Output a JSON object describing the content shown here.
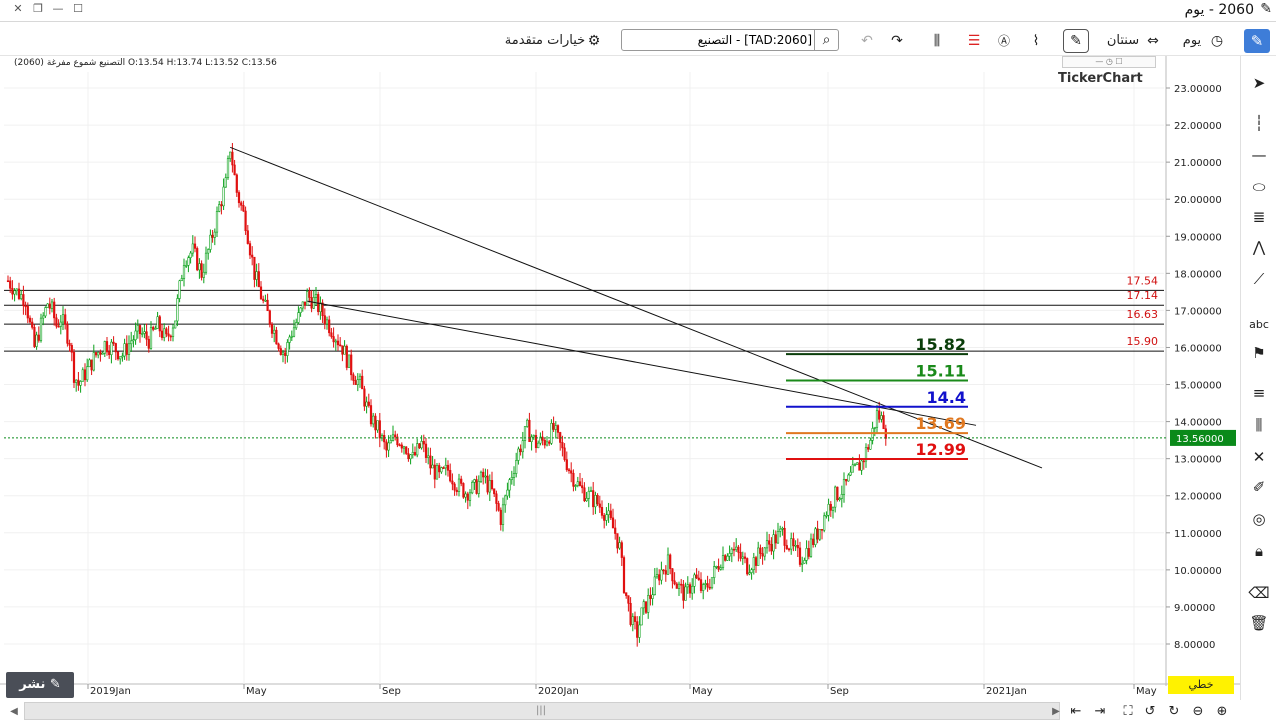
{
  "window": {
    "title": "2060 - يوم",
    "menu_icon": "pencil-icon"
  },
  "toolbar": {
    "advanced_options": "خيارات متقدمة",
    "symbol_search_value": "[TAD:2060] - التصنيع",
    "timeframe_label": "يوم",
    "period_label": "سنتان"
  },
  "chart_header": {
    "symbol_ar": "التصنيع شموع مفرغة",
    "symbol_code": "(2060)",
    "open": "O:13.54",
    "high": "H:13.74",
    "low": "L:13.52",
    "close": "C:13.56"
  },
  "logo": "TickerChart",
  "chart_data": {
    "type": "candlestick",
    "y_axis": {
      "min": 7.5,
      "max": 23.5,
      "ticks": [
        "23.00000",
        "22.00000",
        "21.00000",
        "20.00000",
        "19.00000",
        "18.00000",
        "17.00000",
        "16.00000",
        "15.00000",
        "14.00000",
        "13.00000",
        "12.00000",
        "11.00000",
        "10.00000",
        "9.00000",
        "8.00000"
      ]
    },
    "x_axis_labels": [
      "2019Jan",
      "May",
      "Sep",
      "2020Jan",
      "May",
      "Sep",
      "2021Jan",
      "May"
    ],
    "last_price": "13.56000",
    "resistance_lines": [
      {
        "label": "17.54",
        "value": 17.54
      },
      {
        "label": "17.14",
        "value": 17.14
      },
      {
        "label": "16.63",
        "value": 16.63
      },
      {
        "label": "15.90",
        "value": 15.9
      }
    ],
    "fib_levels": [
      {
        "label": "15.82",
        "value": 15.82,
        "color": "#0a3d0a"
      },
      {
        "label": "15.11",
        "value": 15.11,
        "color": "#1a8a1a"
      },
      {
        "label": "14.4",
        "value": 14.4,
        "color": "#1111cc"
      },
      {
        "label": "13.69",
        "value": 13.69,
        "color": "#e07820"
      },
      {
        "label": "12.99",
        "value": 12.99,
        "color": "#e01010"
      }
    ],
    "price_path": [
      [
        0,
        17.8
      ],
      [
        4,
        17.5
      ],
      [
        8,
        17.3
      ],
      [
        10,
        16.6
      ],
      [
        12,
        16.0
      ],
      [
        15,
        16.6
      ],
      [
        18,
        17.2
      ],
      [
        20,
        17.0
      ],
      [
        22,
        16.6
      ],
      [
        24,
        16.8
      ],
      [
        28,
        16.2
      ],
      [
        30,
        15.3
      ],
      [
        32,
        15.0
      ],
      [
        36,
        15.4
      ],
      [
        40,
        15.8
      ],
      [
        44,
        16.1
      ],
      [
        48,
        16.0
      ],
      [
        52,
        15.8
      ],
      [
        56,
        16.2
      ],
      [
        60,
        16.4
      ],
      [
        64,
        16.2
      ],
      [
        68,
        16.6
      ],
      [
        72,
        16.2
      ],
      [
        76,
        16.8
      ],
      [
        80,
        18.4
      ],
      [
        84,
        18.6
      ],
      [
        88,
        18.0
      ],
      [
        92,
        18.8
      ],
      [
        96,
        19.8
      ],
      [
        99,
        20.4
      ],
      [
        101,
        21.4
      ],
      [
        104,
        20.2
      ],
      [
        108,
        19.4
      ],
      [
        112,
        18.0
      ],
      [
        116,
        17.2
      ],
      [
        120,
        16.6
      ],
      [
        124,
        16.0
      ],
      [
        126,
        15.8
      ],
      [
        128,
        16.3
      ],
      [
        132,
        16.8
      ],
      [
        136,
        17.4
      ],
      [
        140,
        17.2
      ],
      [
        144,
        16.8
      ],
      [
        148,
        16.4
      ],
      [
        152,
        16.0
      ],
      [
        156,
        15.4
      ],
      [
        160,
        15.0
      ],
      [
        164,
        14.2
      ],
      [
        168,
        13.8
      ],
      [
        172,
        13.2
      ],
      [
        176,
        13.6
      ],
      [
        180,
        13.4
      ],
      [
        184,
        13.0
      ],
      [
        188,
        13.4
      ],
      [
        192,
        12.8
      ],
      [
        196,
        12.5
      ],
      [
        200,
        12.7
      ],
      [
        204,
        12.3
      ],
      [
        208,
        12.1
      ],
      [
        212,
        12.2
      ],
      [
        216,
        12.5
      ],
      [
        220,
        12.1
      ],
      [
        224,
        11.4
      ],
      [
        228,
        12.4
      ],
      [
        232,
        13.2
      ],
      [
        236,
        13.8
      ],
      [
        240,
        13.4
      ],
      [
        244,
        13.5
      ],
      [
        248,
        13.8
      ],
      [
        252,
        13.2
      ],
      [
        256,
        12.6
      ],
      [
        260,
        12.2
      ],
      [
        264,
        12.0
      ],
      [
        268,
        11.8
      ],
      [
        272,
        11.5
      ],
      [
        276,
        11.0
      ],
      [
        278,
        10.6
      ],
      [
        280,
        9.6
      ],
      [
        282,
        9.0
      ],
      [
        284,
        8.5
      ],
      [
        286,
        8.3
      ],
      [
        288,
        8.8
      ],
      [
        292,
        9.3
      ],
      [
        296,
        9.9
      ],
      [
        300,
        10.2
      ],
      [
        304,
        9.6
      ],
      [
        308,
        9.3
      ],
      [
        312,
        9.8
      ],
      [
        316,
        9.4
      ],
      [
        320,
        9.8
      ],
      [
        324,
        10.3
      ],
      [
        328,
        10.6
      ],
      [
        332,
        10.4
      ],
      [
        336,
        10.1
      ],
      [
        340,
        10.3
      ],
      [
        344,
        10.6
      ],
      [
        348,
        10.8
      ],
      [
        352,
        11.0
      ],
      [
        356,
        10.6
      ],
      [
        360,
        10.3
      ],
      [
        364,
        10.6
      ],
      [
        368,
        11.0
      ],
      [
        372,
        11.6
      ],
      [
        376,
        12.0
      ],
      [
        380,
        12.2
      ],
      [
        384,
        12.6
      ],
      [
        388,
        12.9
      ],
      [
        392,
        13.5
      ],
      [
        395,
        14.2
      ],
      [
        398,
        14.0
      ],
      [
        400,
        13.56
      ]
    ],
    "trendlines": [
      {
        "from": [
          101,
          21.4
        ],
        "to": [
          470,
          12.75
        ]
      },
      {
        "from": [
          136,
          17.25
        ],
        "to": [
          440,
          13.9
        ]
      }
    ]
  },
  "bottom": {
    "share_label": "نشر",
    "linear_label": "خطي"
  },
  "colors": {
    "accent": "#3e7dd8",
    "last_price_bg": "#0a8a1a",
    "candle_up": "#0aa01a",
    "candle_down": "#e01010"
  }
}
